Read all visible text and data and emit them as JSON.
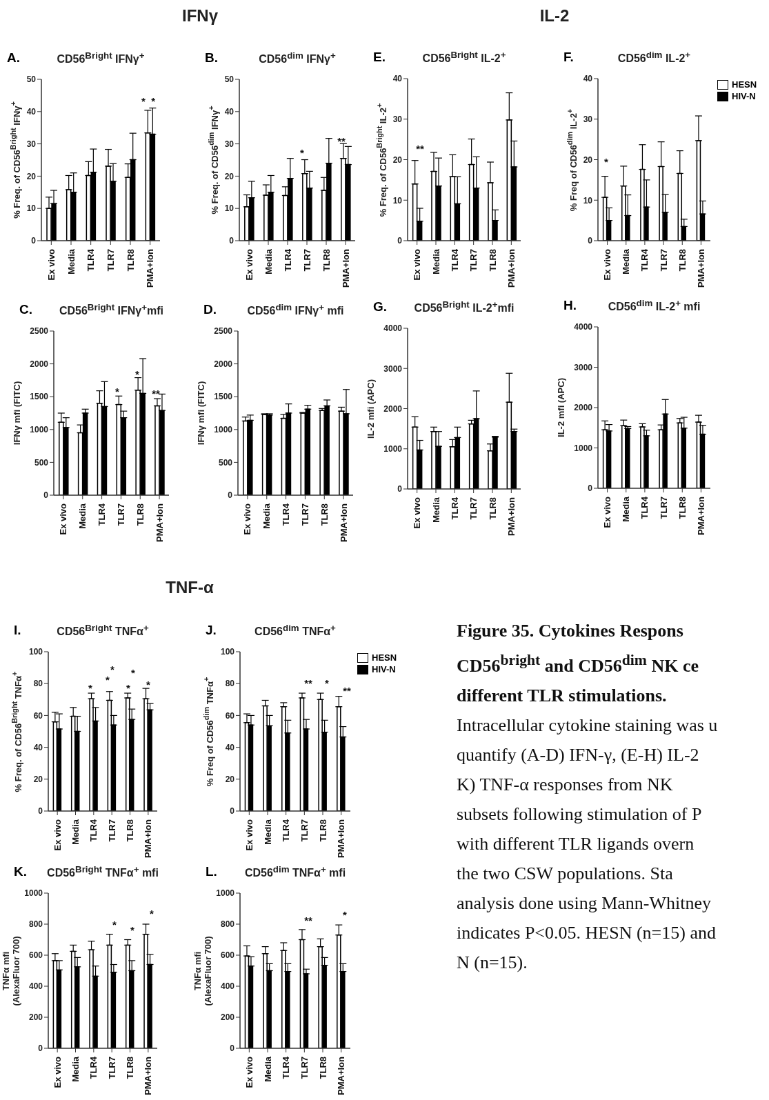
{
  "chart_data": [
    {
      "type": "bar",
      "title": "CD56$^{Bright}$ IFNγ$^{+}$",
      "ylabel": "% Freq. of CD56$^{Bright}$ IFNγ$^{+}$",
      "categories": [
        "Ex vivo",
        "Media",
        "TLR4",
        "TLR7",
        "TLR8",
        "PMA+Ion"
      ],
      "ylim": [
        0,
        50
      ],
      "yticks": [
        0,
        10,
        20,
        30,
        40,
        50
      ],
      "legend": false,
      "annotations": [
        "A.",
        "IFNγ",
        "*  *"
      ],
      "series": [
        {
          "color": "#ffffff",
          "values": [
            10,
            15.8,
            20.2,
            23.1,
            19.6,
            33.4
          ],
          "errors": [
            [
              10,
              13.5
            ],
            [
              15.8,
              20.2
            ],
            [
              20.2,
              24.5
            ],
            [
              23.1,
              28.3
            ],
            [
              19.6,
              23.8
            ],
            [
              33.4,
              40.4
            ]
          ]
        },
        {
          "color": "#000000",
          "values": [
            11.5,
            15,
            21.2,
            18.4,
            25.1,
            33
          ],
          "errors": [
            [
              11.5,
              15.6
            ],
            [
              15,
              21
            ],
            [
              21.2,
              28.4
            ],
            [
              18.4,
              23.9
            ],
            [
              25.1,
              33.3
            ],
            [
              33,
              41.1
            ]
          ]
        }
      ]
    },
    {
      "type": "bar",
      "title": "CD56$^{dim}$ IFNγ$^{+}$",
      "ylabel": "% Freq. of CD56$^{dim}$ IFNγ$^{+}$",
      "categories": [
        "Ex vivo",
        "Media",
        "TLR4",
        "TLR7",
        "TLR8",
        "PMA+Ion"
      ],
      "ylim": [
        0,
        50
      ],
      "yticks": [
        0,
        10,
        20,
        30,
        40,
        50
      ],
      "legend": false,
      "annotations": [
        "B.",
        "*",
        "**"
      ],
      "series": [
        {
          "color": "#ffffff",
          "values": [
            10.5,
            14.1,
            14,
            20.8,
            15.6,
            25.5
          ],
          "errors": [
            [
              10.5,
              14.2
            ],
            [
              14.1,
              17.3
            ],
            [
              14,
              16.7
            ],
            [
              20.8,
              25.1
            ],
            [
              15.6,
              19.6
            ],
            [
              25.5,
              30.1
            ]
          ]
        },
        {
          "color": "#000000",
          "values": [
            13.3,
            15,
            19.3,
            16.3,
            24,
            23.6
          ],
          "errors": [
            [
              13.3,
              18.4
            ],
            [
              15,
              20.2
            ],
            [
              19.3,
              25.5
            ],
            [
              16.3,
              21.5
            ],
            [
              24,
              31.7
            ],
            [
              23.6,
              29.2
            ]
          ]
        }
      ]
    },
    {
      "type": "bar",
      "title": "CD56$^{Bright}$ IL-2$^{+}$",
      "ylabel": "% Freq. of CD56$^{Bright}$ IL-2$^{+}$",
      "categories": [
        "Ex vivo",
        "Media",
        "TLR4",
        "TLR7",
        "TLR8",
        "PMA+Ion"
      ],
      "ylim": [
        0,
        40
      ],
      "yticks": [
        0,
        10,
        20,
        30,
        40
      ],
      "legend": false,
      "annotations": [
        "E.",
        "IL-2",
        "**"
      ],
      "series": [
        {
          "color": "#ffffff",
          "values": [
            14,
            17.1,
            15.8,
            18.8,
            14.3,
            29.8
          ],
          "errors": [
            [
              14,
              19.8
            ],
            [
              17.1,
              21.8
            ],
            [
              15.8,
              21.2
            ],
            [
              18.8,
              25.1
            ],
            [
              14.3,
              19.4
            ],
            [
              29.8,
              36.5
            ]
          ]
        },
        {
          "color": "#000000",
          "values": [
            4.8,
            13.5,
            9.1,
            13,
            5,
            18.2
          ],
          "errors": [
            [
              4.8,
              8
            ],
            [
              13.5,
              20.4
            ],
            [
              9.1,
              15.8
            ],
            [
              13,
              20.7
            ],
            [
              5,
              7.6
            ],
            [
              18.2,
              24.6
            ]
          ]
        }
      ]
    },
    {
      "type": "bar",
      "title": "CD56$^{dim}$ IL-2$^{+}$",
      "ylabel": "% Freq of CD56$^{dim}$ IL-2$^{+}$",
      "categories": [
        "Ex vivo",
        "Media",
        "TLR4",
        "TLR7",
        "TLR8",
        "PMA+Ion"
      ],
      "ylim": [
        0,
        40
      ],
      "yticks": [
        0,
        10,
        20,
        30,
        40
      ],
      "legend": "top right",
      "annotations": [
        "F.",
        "*"
      ],
      "series": [
        {
          "name": "HESN",
          "color": "#ffffff",
          "values": [
            10.7,
            13.5,
            17.6,
            18.3,
            16.6,
            24.7
          ],
          "errors": [
            [
              10.7,
              15.9
            ],
            [
              13.5,
              18.4
            ],
            [
              17.6,
              23.7
            ],
            [
              18.3,
              24.4
            ],
            [
              16.6,
              22.2
            ],
            [
              24.7,
              30.8
            ]
          ]
        },
        {
          "name": "HIV-N",
          "color": "#000000",
          "values": [
            5,
            6.2,
            8.3,
            7,
            3.5,
            6.6
          ],
          "errors": [
            [
              5,
              8.1
            ],
            [
              6.2,
              11.3
            ],
            [
              8.3,
              15
            ],
            [
              7,
              11.4
            ],
            [
              3.5,
              5.3
            ],
            [
              6.6,
              9.8
            ]
          ]
        }
      ]
    },
    {
      "type": "bar",
      "title": "CD56$^{Bright}$ IFNγ$^{+}$mfi",
      "ylabel": "IFNγ mfi (FITC)",
      "categories": [
        "Ex vivo",
        "Media",
        "TLR4",
        "TLR7",
        "TLR8",
        "PMA+Ion"
      ],
      "ylim": [
        0,
        2500
      ],
      "yticks": [
        0,
        500,
        1000,
        1500,
        2000,
        2500
      ],
      "legend": false,
      "annotations": [
        "C.",
        "*",
        "*",
        "**"
      ],
      "series": [
        {
          "color": "#ffffff",
          "values": [
            1110,
            950,
            1400,
            1380,
            1600,
            1360
          ],
          "errors": [
            [
              1110,
              1250
            ],
            [
              950,
              1070
            ],
            [
              1400,
              1590
            ],
            [
              1380,
              1510
            ],
            [
              1600,
              1790
            ],
            [
              1360,
              1470
            ]
          ]
        },
        {
          "color": "#000000",
          "values": [
            1030,
            1250,
            1350,
            1180,
            1550,
            1290
          ],
          "errors": [
            [
              1030,
              1180
            ],
            [
              1250,
              1310
            ],
            [
              1350,
              1730
            ],
            [
              1180,
              1280
            ],
            [
              1550,
              2080
            ],
            [
              1290,
              1540
            ]
          ]
        }
      ]
    },
    {
      "type": "bar",
      "title": "CD56$^{dim}$ IFNγ$^{+}$ mfi",
      "ylabel": "IFNγ mfi (FITC)",
      "categories": [
        "Ex vivo",
        "Media",
        "TLR4",
        "TLR7",
        "TLR8",
        "PMA+Ion"
      ],
      "ylim": [
        0,
        2500
      ],
      "yticks": [
        0,
        500,
        1000,
        1500,
        2000,
        2500
      ],
      "legend": false,
      "annotations": [
        "D."
      ],
      "series": [
        {
          "color": "#ffffff",
          "values": [
            1130,
            1230,
            1170,
            1250,
            1290,
            1280
          ],
          "errors": [
            [
              1130,
              1190
            ],
            [
              1230,
              1240
            ],
            [
              1170,
              1230
            ],
            [
              1250,
              1260
            ],
            [
              1290,
              1320
            ],
            [
              1280,
              1340
            ]
          ]
        },
        {
          "color": "#000000",
          "values": [
            1140,
            1220,
            1250,
            1310,
            1360,
            1240
          ],
          "errors": [
            [
              1140,
              1220
            ],
            [
              1220,
              1240
            ],
            [
              1250,
              1390
            ],
            [
              1310,
              1370
            ],
            [
              1360,
              1450
            ],
            [
              1240,
              1610
            ]
          ]
        }
      ]
    },
    {
      "type": "bar",
      "title": "CD56$^{Bright}$ IL-2$^{+}$mfi",
      "ylabel": "IL-2 mfi (APC)",
      "categories": [
        "Ex vivo",
        "Media",
        "TLR4",
        "TLR7",
        "TLR8",
        "PMA+Ion"
      ],
      "ylim": [
        0,
        4000
      ],
      "yticks": [
        0,
        1000,
        2000,
        3000,
        4000
      ],
      "legend": false,
      "annotations": [
        "G."
      ],
      "series": [
        {
          "color": "#ffffff",
          "values": [
            1540,
            1430,
            1050,
            1620,
            950,
            2160
          ],
          "errors": [
            [
              1540,
              1800
            ],
            [
              1430,
              1540
            ],
            [
              1050,
              1230
            ],
            [
              1620,
              1710
            ],
            [
              950,
              1120
            ],
            [
              2160,
              2880
            ]
          ]
        },
        {
          "color": "#000000",
          "values": [
            970,
            1060,
            1280,
            1750,
            1290,
            1430
          ],
          "errors": [
            [
              970,
              1210
            ],
            [
              1060,
              1430
            ],
            [
              1280,
              1540
            ],
            [
              1750,
              2440
            ],
            [
              1290,
              1310
            ],
            [
              1430,
              1490
            ]
          ]
        }
      ]
    },
    {
      "type": "bar",
      "title": "CD56$^{dim}$ IL-2$^{+}$ mfi",
      "ylabel": "IL-2 mfi (APC)",
      "categories": [
        "Ex vivo",
        "Media",
        "TLR4",
        "TLR7",
        "TLR8",
        "PMA+Ion"
      ],
      "ylim": [
        0,
        4000
      ],
      "yticks": [
        0,
        1000,
        2000,
        3000,
        4000
      ],
      "legend": false,
      "annotations": [
        "H."
      ],
      "series": [
        {
          "color": "#ffffff",
          "values": [
            1450,
            1550,
            1520,
            1450,
            1620,
            1640
          ],
          "errors": [
            [
              1450,
              1670
            ],
            [
              1550,
              1690
            ],
            [
              1520,
              1600
            ],
            [
              1450,
              1570
            ],
            [
              1620,
              1730
            ],
            [
              1640,
              1810
            ]
          ]
        },
        {
          "color": "#000000",
          "values": [
            1420,
            1480,
            1300,
            1840,
            1490,
            1340
          ],
          "errors": [
            [
              1420,
              1580
            ],
            [
              1480,
              1530
            ],
            [
              1300,
              1440
            ],
            [
              1840,
              2200
            ],
            [
              1490,
              1760
            ],
            [
              1340,
              1560
            ]
          ]
        }
      ]
    },
    {
      "type": "bar",
      "title": "CD56$^{Bright}$ TNFα$^{+}$",
      "ylabel": "% Freq. of CD56$^{Bright}$ TNFα$^{+}$",
      "categories": [
        "Ex vivo",
        "Media",
        "TLR4",
        "TLR7",
        "TLR8",
        "PMA+Ion"
      ],
      "ylim": [
        0,
        100
      ],
      "yticks": [
        0,
        20,
        40,
        60,
        80,
        100
      ],
      "legend": false,
      "annotations": [
        "I.",
        "TNF-α",
        "*",
        "*",
        "*",
        "*",
        "*",
        "*"
      ],
      "series": [
        {
          "color": "#ffffff",
          "values": [
            56,
            59.5,
            70.5,
            69.5,
            71,
            70.5
          ],
          "errors": [
            [
              56,
              62
            ],
            [
              59.5,
              65
            ],
            [
              70.5,
              74
            ],
            [
              69.5,
              75
            ],
            [
              71,
              74
            ],
            [
              70.5,
              77
            ]
          ]
        },
        {
          "color": "#000000",
          "values": [
            51.5,
            50,
            56.5,
            54,
            57.5,
            63.5
          ],
          "errors": [
            [
              51.5,
              61
            ],
            [
              50,
              59.5
            ],
            [
              56.5,
              65
            ],
            [
              54,
              60
            ],
            [
              57.5,
              64
            ],
            [
              63.5,
              67.5
            ]
          ]
        }
      ]
    },
    {
      "type": "bar",
      "title": "CD56$^{dim}$ TNFα$^{+}$",
      "ylabel": "% Freq of CD56$^{dim}$ TNFα$^{+}$",
      "categories": [
        "Ex vivo",
        "Media",
        "TLR4",
        "TLR7",
        "TLR8",
        "PMA+Ion"
      ],
      "ylim": [
        0,
        100
      ],
      "yticks": [
        0,
        20,
        40,
        60,
        80,
        100
      ],
      "legend": "top right",
      "annotations": [
        "J.",
        "**",
        "*",
        "**"
      ],
      "series": [
        {
          "name": "HESN",
          "color": "#ffffff",
          "values": [
            55.5,
            66,
            65.5,
            71,
            70,
            65.5
          ],
          "errors": [
            [
              55.5,
              61
            ],
            [
              66,
              69.5
            ],
            [
              65.5,
              68
            ],
            [
              71,
              74
            ],
            [
              70,
              74
            ],
            [
              65.5,
              72
            ]
          ]
        },
        {
          "name": "HIV-N",
          "color": "#000000",
          "values": [
            54,
            53.5,
            49,
            51.5,
            49.5,
            46.5
          ],
          "errors": [
            [
              54,
              60
            ],
            [
              53.5,
              60
            ],
            [
              49,
              57
            ],
            [
              51.5,
              57.5
            ],
            [
              49.5,
              57
            ],
            [
              46.5,
              53
            ]
          ]
        }
      ]
    },
    {
      "type": "bar",
      "title": "CD56$^{Bright}$ TNFα$^{+}$ mfi",
      "ylabel": "TNFα mfi\n(AlexaFluor 700)",
      "categories": [
        "Ex vivo",
        "Media",
        "TLR4",
        "TLR7",
        "TLR8",
        "PMA+Ion"
      ],
      "ylim": [
        0,
        1000
      ],
      "yticks": [
        0,
        200,
        400,
        600,
        800,
        1000
      ],
      "legend": false,
      "annotations": [
        "K.",
        "*",
        "*",
        "*"
      ],
      "series": [
        {
          "color": "#ffffff",
          "values": [
            565,
            625,
            635,
            665,
            665,
            735
          ],
          "errors": [
            [
              565,
              610
            ],
            [
              625,
              665
            ],
            [
              635,
              690
            ],
            [
              665,
              735
            ],
            [
              665,
              700
            ],
            [
              735,
              800
            ]
          ]
        },
        {
          "color": "#000000",
          "values": [
            505,
            525,
            465,
            490,
            500,
            540
          ],
          "errors": [
            [
              505,
              565
            ],
            [
              525,
              585
            ],
            [
              465,
              530
            ],
            [
              490,
              540
            ],
            [
              500,
              565
            ],
            [
              540,
              605
            ]
          ]
        }
      ]
    },
    {
      "type": "bar",
      "title": "CD56$^{dim}$ TNFα$^{+}$ mfi",
      "ylabel": "TNFα mfi\n(AlexaFluor 700)",
      "categories": [
        "Ex vivo",
        "Media",
        "TLR4",
        "TLR7",
        "TLR8",
        "PMA+Ion"
      ],
      "ylim": [
        0,
        1000
      ],
      "yticks": [
        0,
        200,
        400,
        600,
        800,
        1000
      ],
      "legend": false,
      "annotations": [
        "L.",
        "**",
        "*"
      ],
      "series": [
        {
          "color": "#ffffff",
          "values": [
            595,
            610,
            630,
            700,
            655,
            730
          ],
          "errors": [
            [
              595,
              660
            ],
            [
              610,
              655
            ],
            [
              630,
              680
            ],
            [
              700,
              765
            ],
            [
              655,
              705
            ],
            [
              730,
              795
            ]
          ]
        },
        {
          "color": "#000000",
          "values": [
            530,
            500,
            495,
            480,
            535,
            495
          ],
          "errors": [
            [
              530,
              590
            ],
            [
              500,
              545
            ],
            [
              495,
              545
            ],
            [
              480,
              510
            ],
            [
              535,
              585
            ],
            [
              495,
              545
            ]
          ]
        }
      ]
    },
    {
      "type": "other",
      "title": "Figure 35. Cytokines Respons\nCD56$^{bright}$ and CD56$^{dim}$ NK ce\ndifferent TLR stimulations.",
      "annotations": [
        "Intracellular cytokine staining was u",
        "quantify (A-D) IFN-γ, (E-H) IL-2",
        "K) TNF-α responses from NK",
        "subsets following stimulation of P",
        "with different TLR ligands overn",
        "the two CSW populations. Sta",
        "analysis done using Mann-Whitney",
        "indicates P<0.05. HESN (n=15) and",
        "N (n=15)."
      ]
    }
  ]
}
